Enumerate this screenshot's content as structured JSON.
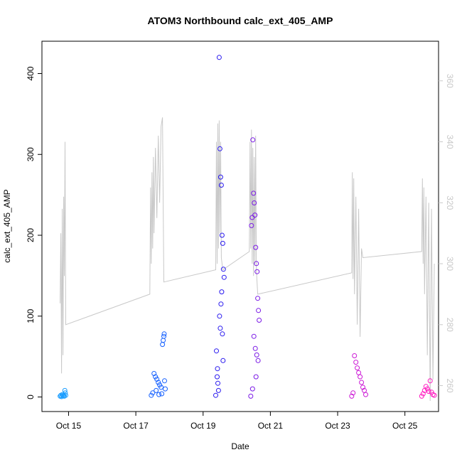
{
  "chart_data": {
    "type": "scatter",
    "title": "ATOM3 Northbound calc_ext_405_AMP",
    "xlabel": "Date",
    "ylabel": "calc_ext_405_AMP",
    "x_ticks": [
      "Oct 15",
      "Oct 17",
      "Oct 19",
      "Oct 21",
      "Oct 23",
      "Oct 25"
    ],
    "y_ticks": [
      0,
      100,
      200,
      300,
      400
    ],
    "y2_ticks": [
      260,
      280,
      300,
      320,
      340,
      360
    ],
    "xlim": [
      "2013-10-14T05:00",
      "2013-10-26T00:00"
    ],
    "ylim": [
      -18,
      440
    ],
    "y2lim": [
      251.5,
      373
    ],
    "colors": {
      "line": "#c8c8c8",
      "right_axis": "#c8c8c8",
      "frame": "#000000"
    },
    "series": [
      {
        "type": "scatter",
        "color": "#1a9dff",
        "time_range": [
          "2013-10-14T18:00",
          "2013-10-14T22:00"
        ],
        "points": [
          [
            "2013-10-14T18:00",
            1
          ],
          [
            "2013-10-14T18:30",
            2
          ],
          [
            "2013-10-14T19:00",
            0.5
          ],
          [
            "2013-10-14T19:30",
            3
          ],
          [
            "2013-10-14T20:00",
            1.5
          ],
          [
            "2013-10-14T20:30",
            2
          ],
          [
            "2013-10-14T21:00",
            1
          ],
          [
            "2013-10-14T21:20",
            8
          ],
          [
            "2013-10-14T21:40",
            5
          ],
          [
            "2013-10-14T22:00",
            2
          ]
        ]
      },
      {
        "type": "scatter",
        "color": "#1560ff",
        "time_range": [
          "2013-10-17T11:00",
          "2013-10-17T21:00"
        ],
        "points": [
          [
            "2013-10-17T11:00",
            2
          ],
          [
            "2013-10-17T12:00",
            5
          ],
          [
            "2013-10-17T13:00",
            29
          ],
          [
            "2013-10-17T14:00",
            25
          ],
          [
            "2013-10-17T15:00",
            22
          ],
          [
            "2013-10-17T16:00",
            18
          ],
          [
            "2013-10-17T17:00",
            15
          ],
          [
            "2013-10-17T18:00",
            12
          ],
          [
            "2013-10-17T19:00",
            65
          ],
          [
            "2013-10-17T19:30",
            70
          ],
          [
            "2013-10-17T20:00",
            75
          ],
          [
            "2013-10-17T20:15",
            78
          ],
          [
            "2013-10-17T20:30",
            20
          ],
          [
            "2013-10-17T21:00",
            10
          ],
          [
            "2013-10-17T14:30",
            8
          ],
          [
            "2013-10-17T16:30",
            3
          ],
          [
            "2013-10-17T18:30",
            4
          ]
        ]
      },
      {
        "type": "scatter",
        "color": "#2a1aef",
        "time_range": [
          "2013-10-19T09:00",
          "2013-10-19T15:00"
        ],
        "points": [
          [
            "2013-10-19T09:00",
            2
          ],
          [
            "2013-10-19T09:30",
            57
          ],
          [
            "2013-10-19T10:00",
            25
          ],
          [
            "2013-10-19T10:30",
            17
          ],
          [
            "2013-10-19T11:00",
            8
          ],
          [
            "2013-10-19T11:30",
            420
          ],
          [
            "2013-10-19T12:00",
            307
          ],
          [
            "2013-10-19T12:30",
            272
          ],
          [
            "2013-10-19T13:00",
            262
          ],
          [
            "2013-10-19T13:30",
            200
          ],
          [
            "2013-10-19T14:00",
            190
          ],
          [
            "2013-10-19T14:30",
            158
          ],
          [
            "2013-10-19T15:00",
            148
          ],
          [
            "2013-10-19T13:15",
            130
          ],
          [
            "2013-10-19T12:45",
            115
          ],
          [
            "2013-10-19T11:45",
            100
          ],
          [
            "2013-10-19T12:15",
            85
          ],
          [
            "2013-10-19T14:15",
            45
          ],
          [
            "2013-10-19T10:15",
            35
          ],
          [
            "2013-10-19T13:45",
            78
          ]
        ]
      },
      {
        "type": "scatter",
        "color": "#7b1ae6",
        "time_range": [
          "2013-10-20T10:00",
          "2013-10-20T16:00"
        ],
        "points": [
          [
            "2013-10-20T10:00",
            1
          ],
          [
            "2013-10-20T10:30",
            212
          ],
          [
            "2013-10-20T11:00",
            222
          ],
          [
            "2013-10-20T11:30",
            318
          ],
          [
            "2013-10-20T12:00",
            252
          ],
          [
            "2013-10-20T12:30",
            240
          ],
          [
            "2013-10-20T13:00",
            225
          ],
          [
            "2013-10-20T13:30",
            185
          ],
          [
            "2013-10-20T14:00",
            165
          ],
          [
            "2013-10-20T14:30",
            155
          ],
          [
            "2013-10-20T15:00",
            122
          ],
          [
            "2013-10-20T15:30",
            107
          ],
          [
            "2013-10-20T16:00",
            95
          ],
          [
            "2013-10-20T12:15",
            75
          ],
          [
            "2013-10-20T13:15",
            60
          ],
          [
            "2013-10-20T14:15",
            52
          ],
          [
            "2013-10-20T15:15",
            45
          ],
          [
            "2013-10-20T13:45",
            25
          ],
          [
            "2013-10-20T11:15",
            10
          ]
        ]
      },
      {
        "type": "scatter",
        "color": "#cc1ad6",
        "time_range": [
          "2013-10-23T10:00",
          "2013-10-23T20:00"
        ],
        "points": [
          [
            "2013-10-23T10:00",
            1
          ],
          [
            "2013-10-23T11:00",
            5
          ],
          [
            "2013-10-23T12:00",
            51
          ],
          [
            "2013-10-23T13:00",
            43
          ],
          [
            "2013-10-23T14:00",
            36
          ],
          [
            "2013-10-23T15:00",
            30
          ],
          [
            "2013-10-23T16:00",
            25
          ],
          [
            "2013-10-23T17:00",
            18
          ],
          [
            "2013-10-23T18:00",
            12
          ],
          [
            "2013-10-23T19:00",
            8
          ],
          [
            "2013-10-23T20:00",
            3
          ]
        ]
      },
      {
        "type": "scatter",
        "color": "#ff1ac0",
        "time_range": [
          "2013-10-25T12:00",
          "2013-10-25T21:00"
        ],
        "points": [
          [
            "2013-10-25T12:00",
            1
          ],
          [
            "2013-10-25T13:00",
            4
          ],
          [
            "2013-10-25T14:00",
            8
          ],
          [
            "2013-10-25T15:00",
            13
          ],
          [
            "2013-10-25T16:00",
            10
          ],
          [
            "2013-10-25T17:00",
            7
          ],
          [
            "2013-10-25T18:00",
            20
          ],
          [
            "2013-10-25T19:00",
            6
          ],
          [
            "2013-10-25T20:00",
            3
          ],
          [
            "2013-10-25T21:00",
            2
          ]
        ]
      },
      {
        "type": "line",
        "axis": "right",
        "color": "#c8c8c8",
        "segments": [
          {
            "points": [
              [
                "2013-10-14T18:00",
                287
              ],
              [
                "2013-10-14T18:30",
                310
              ],
              [
                "2013-10-14T19:00",
                264
              ],
              [
                "2013-10-14T19:30",
                318
              ],
              [
                "2013-10-14T20:00",
                270
              ],
              [
                "2013-10-14T20:30",
                322
              ],
              [
                "2013-10-14T21:00",
                296
              ],
              [
                "2013-10-14T21:30",
                340
              ],
              [
                "2013-10-14T22:00",
                280
              ],
              [
                "2013-10-17T10:00",
                290
              ],
              [
                "2013-10-17T10:30",
                325
              ],
              [
                "2013-10-17T11:00",
                300
              ],
              [
                "2013-10-17T11:30",
                330
              ],
              [
                "2013-10-17T12:00",
                305
              ],
              [
                "2013-10-17T12:30",
                335
              ],
              [
                "2013-10-17T13:00",
                310
              ],
              [
                "2013-10-17T14:00",
                338
              ],
              [
                "2013-10-17T15:00",
                315
              ],
              [
                "2013-10-17T16:00",
                342
              ],
              [
                "2013-10-17T17:00",
                320
              ],
              [
                "2013-10-17T18:00",
                345
              ],
              [
                "2013-10-17T19:00",
                348
              ],
              [
                "2013-10-17T20:00",
                294
              ],
              [
                "2013-10-19T09:00",
                298
              ],
              [
                "2013-10-19T09:30",
                340
              ],
              [
                "2013-10-19T10:00",
                300
              ],
              [
                "2013-10-19T10:30",
                346
              ],
              [
                "2013-10-19T11:00",
                305
              ],
              [
                "2013-10-19T11:30",
                347
              ],
              [
                "2013-10-19T12:00",
                310
              ],
              [
                "2013-10-19T12:30",
                340
              ],
              [
                "2013-10-19T13:00",
                302
              ],
              [
                "2013-10-19T14:00",
                298
              ],
              [
                "2013-10-20T09:00",
                304
              ],
              [
                "2013-10-20T09:30",
                340
              ],
              [
                "2013-10-20T10:00",
                305
              ],
              [
                "2013-10-20T10:30",
                344
              ],
              [
                "2013-10-20T11:00",
                300
              ],
              [
                "2013-10-20T11:30",
                338
              ],
              [
                "2013-10-20T12:00",
                296
              ],
              [
                "2013-10-20T12:30",
                335
              ],
              [
                "2013-10-20T13:00",
                300
              ],
              [
                "2013-10-20T13:30",
                342
              ],
              [
                "2013-10-20T14:00",
                298
              ],
              [
                "2013-10-20T15:00",
                290
              ],
              [
                "2013-10-23T10:00",
                297
              ],
              [
                "2013-10-23T10:30",
                330
              ],
              [
                "2013-10-23T11:00",
                295
              ],
              [
                "2013-10-23T11:30",
                328
              ],
              [
                "2013-10-23T12:00",
                290
              ],
              [
                "2013-10-23T13:00",
                322
              ],
              [
                "2013-10-23T14:00",
                280
              ],
              [
                "2013-10-23T15:00",
                318
              ],
              [
                "2013-10-23T16:00",
                276
              ],
              [
                "2013-10-23T17:00",
                305
              ],
              [
                "2013-10-23T18:00",
                302
              ],
              [
                "2013-10-25T12:00",
                304
              ],
              [
                "2013-10-25T12:30",
                328
              ],
              [
                "2013-10-25T13:00",
                300
              ],
              [
                "2013-10-25T13:30",
                325
              ],
              [
                "2013-10-25T14:00",
                290
              ],
              [
                "2013-10-25T15:00",
                322
              ],
              [
                "2013-10-25T16:00",
                270
              ],
              [
                "2013-10-25T17:00",
                320
              ],
              [
                "2013-10-25T18:00",
                255
              ],
              [
                "2013-10-25T19:00",
                318
              ],
              [
                "2013-10-25T20:00",
                262
              ],
              [
                "2013-10-25T21:00",
                300
              ]
            ]
          }
        ]
      }
    ]
  }
}
